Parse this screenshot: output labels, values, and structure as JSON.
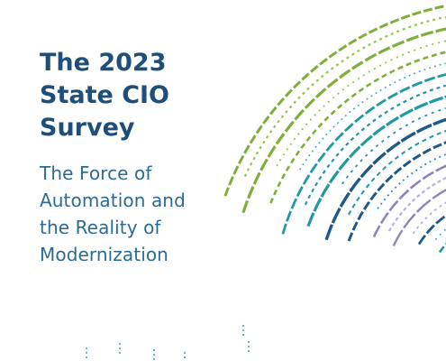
{
  "cover": {
    "title_lines": [
      "The 2023",
      "State CIO",
      "Survey"
    ],
    "subtitle_lines": [
      "The Force of",
      "Automation and",
      "the Reality of",
      "Modernization"
    ]
  },
  "colors": {
    "title": "#1d4f7a",
    "subtitle": "#2a6a95",
    "art_palette": [
      "#7fae3a",
      "#9cc24a",
      "#1f9aa0",
      "#2a8fb3",
      "#1d5a8a",
      "#8a86b8",
      "#b7b3d6",
      "#3fb3a8"
    ]
  }
}
